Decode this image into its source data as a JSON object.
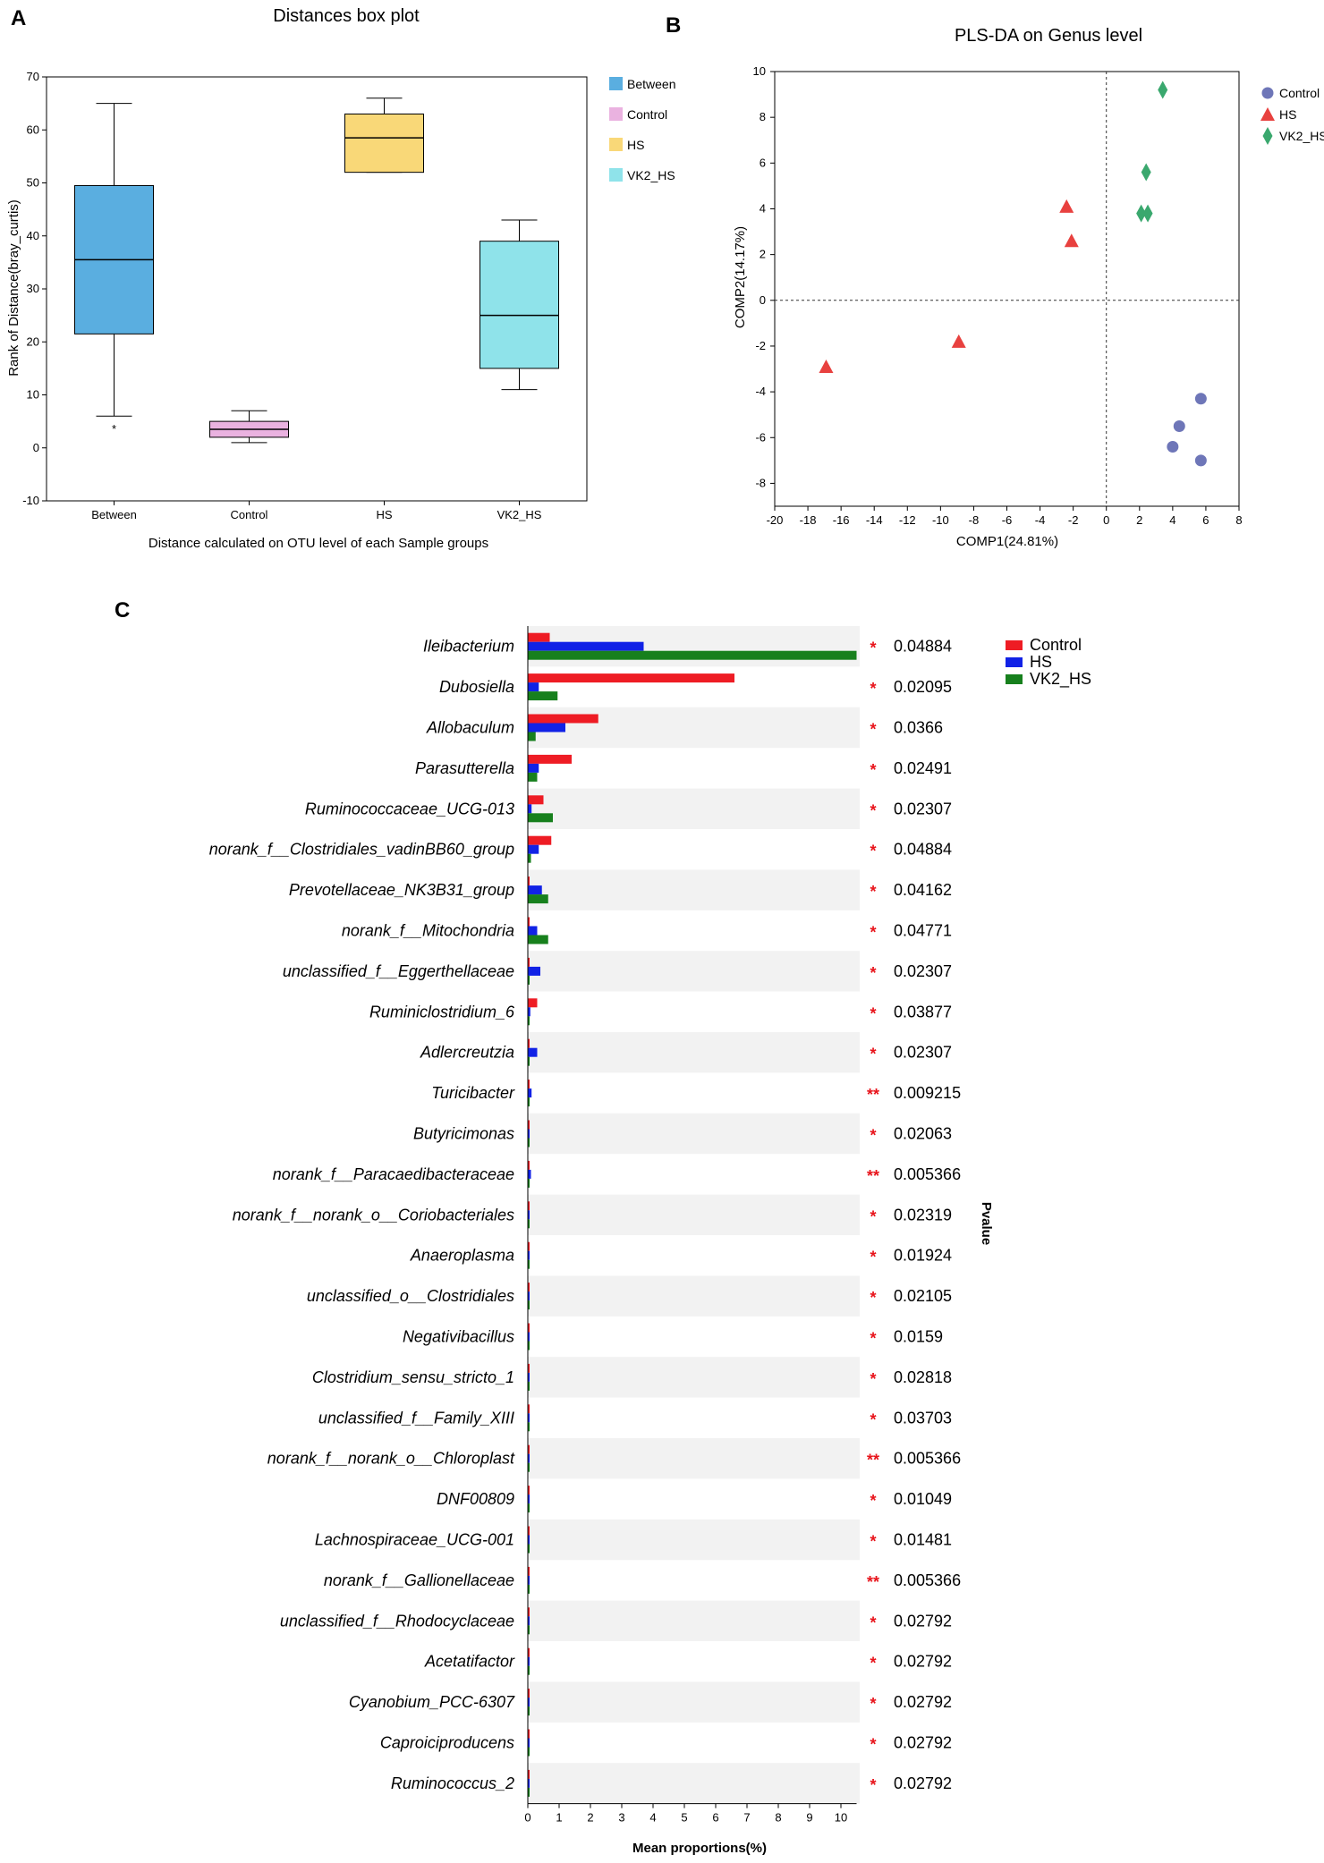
{
  "panels": {
    "a": "A",
    "b": "B",
    "c": "C"
  },
  "chart_data": [
    {
      "type": "box",
      "title": "Distances box plot",
      "xlabel": "Distance calculated on OTU level of each Sample groups",
      "ylabel": "Rank of Distance(bray_curtis)",
      "ylim": [
        -10,
        70
      ],
      "yticks": [
        -10,
        0,
        10,
        20,
        30,
        40,
        50,
        60,
        70
      ],
      "categories": [
        "Between",
        "Control",
        "HS",
        "VK2_HS"
      ],
      "boxes": [
        {
          "name": "Between",
          "whisker_low": 6,
          "q1": 21.5,
          "median": 35.5,
          "q3": 49.5,
          "whisker_high": 65,
          "outliers": [
            4.5
          ],
          "outlier_label": "*",
          "color": "#5aaee0"
        },
        {
          "name": "Control",
          "whisker_low": 1,
          "q1": 2,
          "median": 3.5,
          "q3": 5,
          "whisker_high": 7,
          "outliers": [],
          "outlier_label": "",
          "color": "#eab2e0"
        },
        {
          "name": "HS",
          "whisker_low": 52,
          "q1": 52,
          "median": 58.5,
          "q3": 63,
          "whisker_high": 66,
          "outliers": [],
          "outlier_label": "",
          "color": "#f9d878"
        },
        {
          "name": "VK2_HS",
          "whisker_low": 11,
          "q1": 15,
          "median": 25,
          "q3": 39,
          "whisker_high": 43,
          "outliers": [],
          "outlier_label": "",
          "color": "#8fe3ea"
        }
      ],
      "legend": [
        "Between",
        "Control",
        "HS",
        "VK2_HS"
      ]
    },
    {
      "type": "scatter",
      "title": "PLS-DA on Genus level",
      "xlabel": "COMP1(24.81%)",
      "ylabel": "COMP2(14.17%)",
      "xlim": [
        -20,
        8
      ],
      "ylim": [
        -9,
        10
      ],
      "xticks": [
        -20,
        -18,
        -16,
        -14,
        -12,
        -10,
        -8,
        -6,
        -4,
        -2,
        0,
        2,
        4,
        6,
        8
      ],
      "yticks": [
        -8,
        -6,
        -4,
        -2,
        0,
        2,
        4,
        6,
        8,
        10
      ],
      "series": [
        {
          "name": "Control",
          "marker": "circle",
          "color": "#6e76b8",
          "points": [
            [
              5.7,
              -4.3
            ],
            [
              4.4,
              -5.5
            ],
            [
              4.0,
              -6.4
            ],
            [
              5.7,
              -7.0
            ]
          ]
        },
        {
          "name": "HS",
          "marker": "triangle",
          "color": "#e8413f",
          "points": [
            [
              -2.4,
              4.1
            ],
            [
              -2.1,
              2.6
            ],
            [
              -8.9,
              -1.8
            ],
            [
              -16.9,
              -2.9
            ]
          ]
        },
        {
          "name": "VK2_HS",
          "marker": "diamond",
          "color": "#3aa86e",
          "points": [
            [
              3.4,
              9.2
            ],
            [
              2.4,
              5.6
            ],
            [
              2.1,
              3.8
            ],
            [
              2.5,
              3.8
            ]
          ]
        }
      ]
    },
    {
      "type": "bar",
      "orientation": "horizontal",
      "xlabel": "Mean proportions(%)",
      "pvalue_label": "Pvalue",
      "xlim": [
        0,
        10.5
      ],
      "xticks": [
        0,
        1,
        2,
        3,
        4,
        5,
        6,
        7,
        8,
        9,
        10
      ],
      "series_names": [
        "Control",
        "HS",
        "VK2_HS"
      ],
      "series_colors": [
        "#ee1c24",
        "#1122e6",
        "#17801d"
      ],
      "rows": [
        {
          "name": "Ileibacterium",
          "values": [
            0.7,
            3.7,
            10.5
          ],
          "sig": "*",
          "p": "0.04884"
        },
        {
          "name": "Dubosiella",
          "values": [
            6.6,
            0.35,
            0.95
          ],
          "sig": "*",
          "p": "0.02095"
        },
        {
          "name": "Allobaculum",
          "values": [
            2.25,
            1.2,
            0.25
          ],
          "sig": "*",
          "p": "0.0366"
        },
        {
          "name": "Parasutterella",
          "values": [
            1.4,
            0.35,
            0.3
          ],
          "sig": "*",
          "p": "0.02491"
        },
        {
          "name": "Ruminococcaceae_UCG-013",
          "values": [
            0.5,
            0.12,
            0.8
          ],
          "sig": "*",
          "p": "0.02307"
        },
        {
          "name": "norank_f__Clostridiales_vadinBB60_group",
          "values": [
            0.75,
            0.35,
            0.1
          ],
          "sig": "*",
          "p": "0.04884"
        },
        {
          "name": "Prevotellaceae_NK3B31_group",
          "values": [
            0.05,
            0.45,
            0.65
          ],
          "sig": "*",
          "p": "0.04162"
        },
        {
          "name": "norank_f__Mitochondria",
          "values": [
            0.05,
            0.3,
            0.65
          ],
          "sig": "*",
          "p": "0.04771"
        },
        {
          "name": "unclassified_f__Eggerthellaceae",
          "values": [
            0.05,
            0.4,
            0.05
          ],
          "sig": "*",
          "p": "0.02307"
        },
        {
          "name": "Ruminiclostridium_6",
          "values": [
            0.3,
            0.08,
            0.05
          ],
          "sig": "*",
          "p": "0.03877"
        },
        {
          "name": "Adlercreutzia",
          "values": [
            0.02,
            0.3,
            0.05
          ],
          "sig": "*",
          "p": "0.02307"
        },
        {
          "name": "Turicibacter",
          "values": [
            0.02,
            0.12,
            0.02
          ],
          "sig": "**",
          "p": "0.009215"
        },
        {
          "name": "Butyricimonas",
          "values": [
            0.05,
            0.05,
            0.05
          ],
          "sig": "*",
          "p": "0.02063"
        },
        {
          "name": "norank_f__Paracaedibacteraceae",
          "values": [
            0.02,
            0.1,
            0.02
          ],
          "sig": "**",
          "p": "0.005366"
        },
        {
          "name": "norank_f__norank_o__Coriobacteriales",
          "values": [
            0.04,
            0.04,
            0.04
          ],
          "sig": "*",
          "p": "0.02319"
        },
        {
          "name": "Anaeroplasma",
          "values": [
            0.03,
            0.03,
            0.03
          ],
          "sig": "*",
          "p": "0.01924"
        },
        {
          "name": "unclassified_o__Clostridiales",
          "values": [
            0.03,
            0.03,
            0.03
          ],
          "sig": "*",
          "p": "0.02105"
        },
        {
          "name": "Negativibacillus",
          "values": [
            0.03,
            0.03,
            0.03
          ],
          "sig": "*",
          "p": "0.0159"
        },
        {
          "name": "Clostridium_sensu_stricto_1",
          "values": [
            0.03,
            0.03,
            0.03
          ],
          "sig": "*",
          "p": "0.02818"
        },
        {
          "name": "unclassified_f__Family_XIII",
          "values": [
            0.03,
            0.03,
            0.03
          ],
          "sig": "*",
          "p": "0.03703"
        },
        {
          "name": "norank_f__norank_o__Chloroplast",
          "values": [
            0.02,
            0.02,
            0.02
          ],
          "sig": "**",
          "p": "0.005366"
        },
        {
          "name": "DNF00809",
          "values": [
            0.03,
            0.03,
            0.03
          ],
          "sig": "*",
          "p": "0.01049"
        },
        {
          "name": "Lachnospiraceae_UCG-001",
          "values": [
            0.03,
            0.03,
            0.03
          ],
          "sig": "*",
          "p": "0.01481"
        },
        {
          "name": "norank_f__Gallionellaceae",
          "values": [
            0.02,
            0.02,
            0.02
          ],
          "sig": "**",
          "p": "0.005366"
        },
        {
          "name": "unclassified_f__Rhodocyclaceae",
          "values": [
            0.02,
            0.02,
            0.02
          ],
          "sig": "*",
          "p": "0.02792"
        },
        {
          "name": "Acetatifactor",
          "values": [
            0.02,
            0.02,
            0.02
          ],
          "sig": "*",
          "p": "0.02792"
        },
        {
          "name": "Cyanobium_PCC-6307",
          "values": [
            0.02,
            0.02,
            0.02
          ],
          "sig": "*",
          "p": "0.02792"
        },
        {
          "name": "Caproiciproducens",
          "values": [
            0.02,
            0.02,
            0.02
          ],
          "sig": "*",
          "p": "0.02792"
        },
        {
          "name": "Ruminococcus_2",
          "values": [
            0.02,
            0.02,
            0.02
          ],
          "sig": "*",
          "p": "0.02792"
        }
      ]
    }
  ]
}
